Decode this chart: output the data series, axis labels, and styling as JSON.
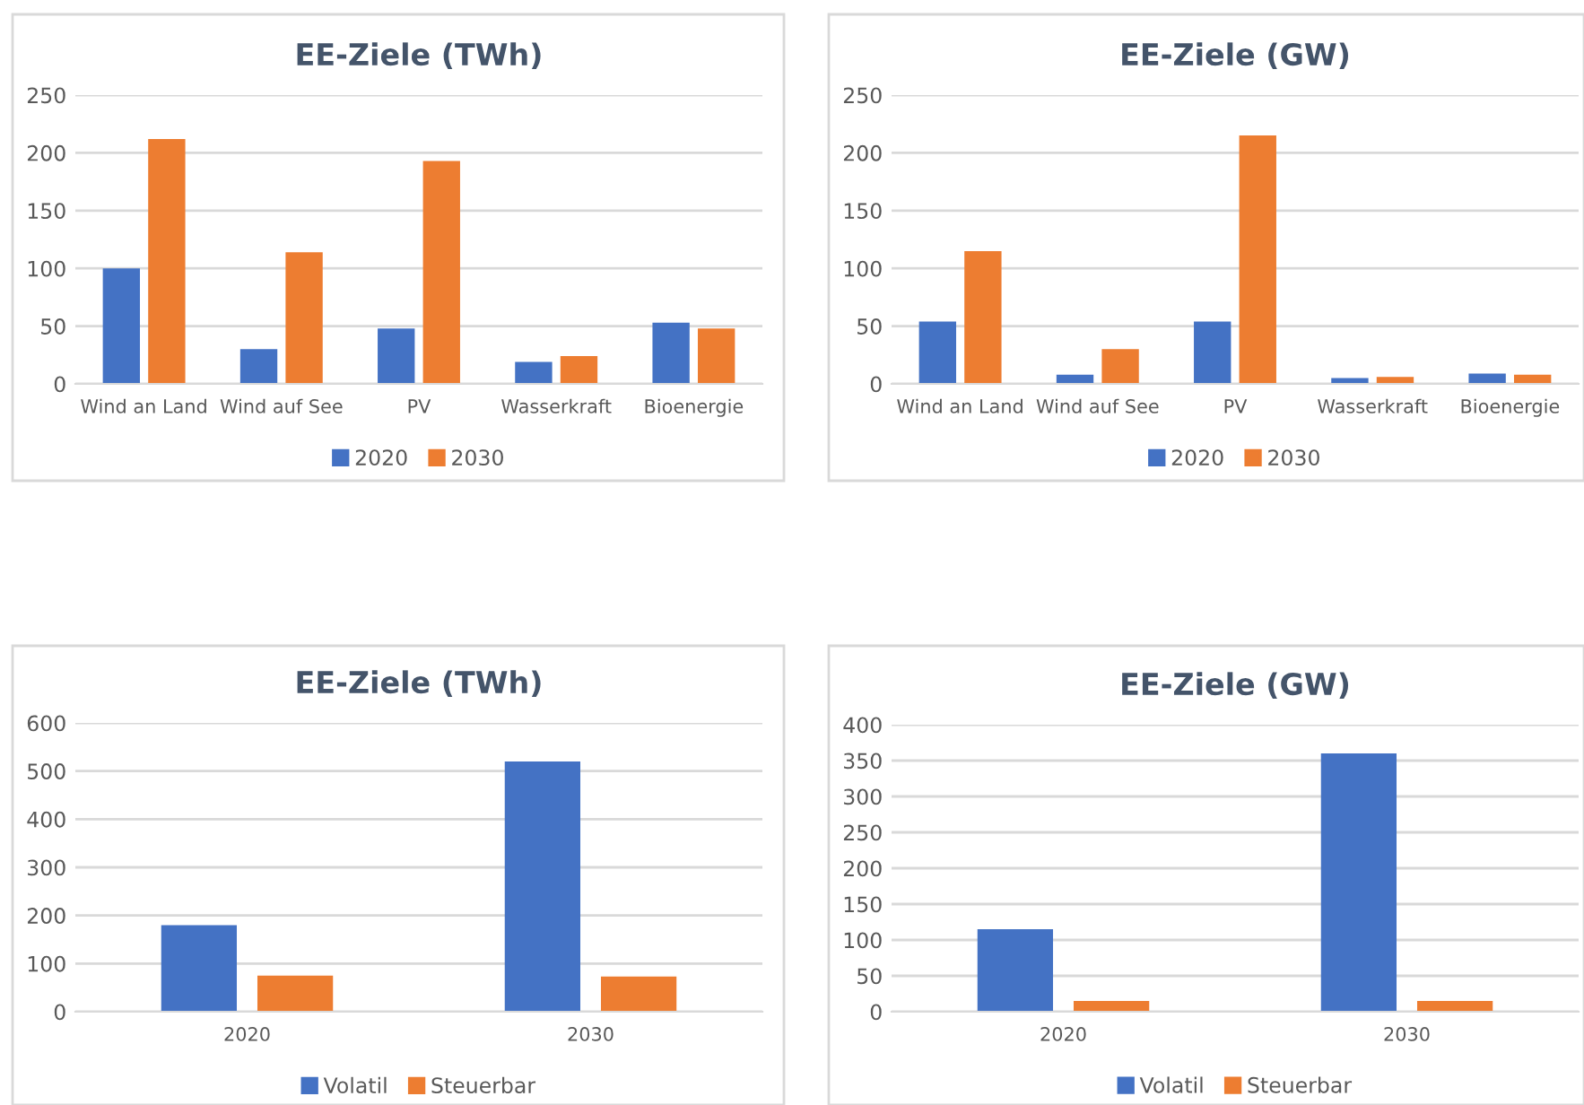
{
  "chart_data": [
    {
      "type": "bar",
      "title": "EE-Ziele (TWh)",
      "categories": [
        "Wind an Land",
        "Wind auf See",
        "PV",
        "Wasserkraft",
        "Bioenergie"
      ],
      "series": [
        {
          "name": "2020",
          "color": "#4472c4",
          "values": [
            100,
            30,
            48,
            19,
            53
          ]
        },
        {
          "name": "2030",
          "color": "#ed7d31",
          "values": [
            212,
            114,
            193,
            24,
            48
          ]
        }
      ],
      "ylim": [
        0,
        250
      ],
      "yticks": [
        0,
        50,
        100,
        150,
        200,
        250
      ],
      "grid": "y",
      "legend": "bottom"
    },
    {
      "type": "bar",
      "title": "EE-Ziele (GW)",
      "categories": [
        "Wind an Land",
        "Wind auf See",
        "PV",
        "Wasserkraft",
        "Bioenergie"
      ],
      "series": [
        {
          "name": "2020",
          "color": "#4472c4",
          "values": [
            54,
            8,
            54,
            5,
            9
          ]
        },
        {
          "name": "2030",
          "color": "#ed7d31",
          "values": [
            115,
            30,
            215,
            6,
            8
          ]
        }
      ],
      "ylim": [
        0,
        250
      ],
      "yticks": [
        0,
        50,
        100,
        150,
        200,
        250
      ],
      "grid": "y",
      "legend": "bottom"
    },
    {
      "type": "bar",
      "title": "EE-Ziele (TWh)",
      "categories": [
        "2020",
        "2030"
      ],
      "series": [
        {
          "name": "Volatil",
          "color": "#4472c4",
          "values": [
            180,
            520
          ]
        },
        {
          "name": "Steuerbar",
          "color": "#ed7d31",
          "values": [
            75,
            73
          ]
        }
      ],
      "ylim": [
        0,
        600
      ],
      "yticks": [
        0,
        100,
        200,
        300,
        400,
        500,
        600
      ],
      "grid": "y",
      "legend": "bottom"
    },
    {
      "type": "bar",
      "title": "EE-Ziele (GW)",
      "categories": [
        "2020",
        "2030"
      ],
      "series": [
        {
          "name": "Volatil",
          "color": "#4472c4",
          "values": [
            115,
            360
          ]
        },
        {
          "name": "Steuerbar",
          "color": "#ed7d31",
          "values": [
            15,
            15
          ]
        }
      ],
      "ylim": [
        0,
        400
      ],
      "yticks": [
        0,
        50,
        100,
        150,
        200,
        250,
        300,
        350,
        400
      ],
      "grid": "y",
      "legend": "bottom"
    }
  ]
}
